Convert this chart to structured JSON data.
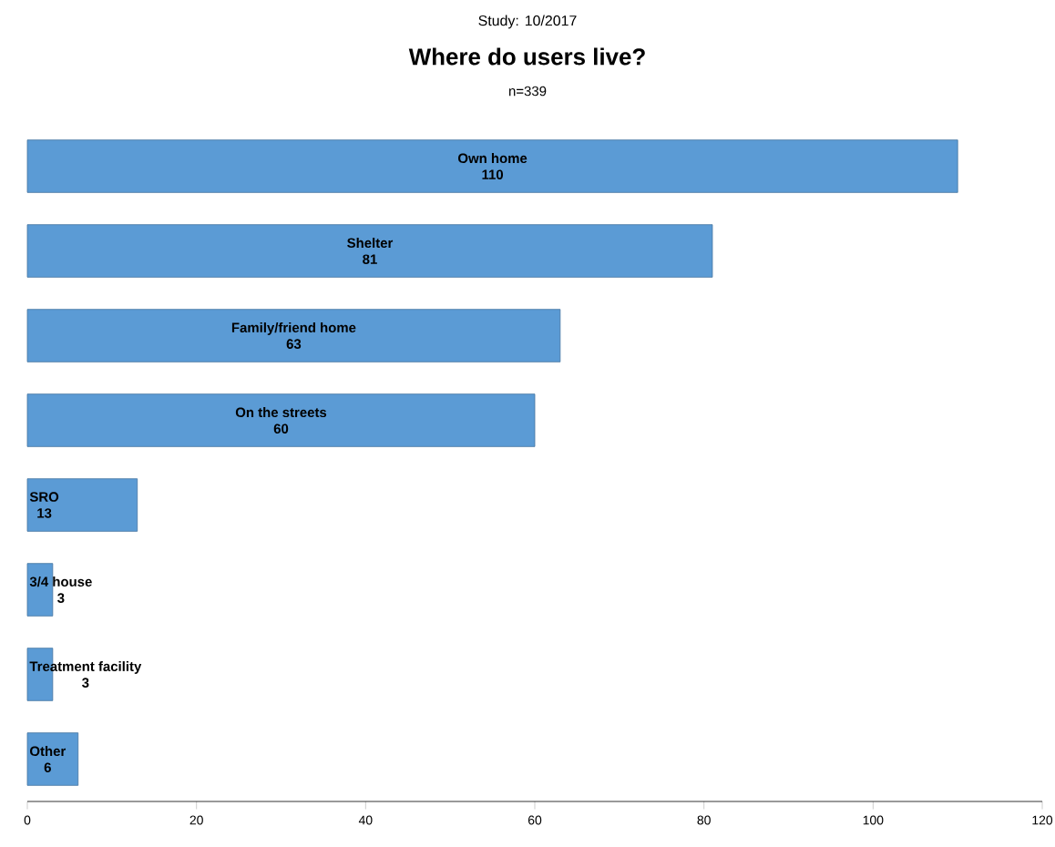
{
  "chart_data": {
    "type": "bar",
    "orientation": "horizontal",
    "title": "Where do users live?",
    "subtitle": "n=339",
    "annotations": [
      "Study: 10/2017"
    ],
    "categories": [
      "Own home",
      "Shelter",
      "Family/friend home",
      "On the streets",
      "SRO",
      "3/4 house",
      "Treatment facility",
      "Other"
    ],
    "values": [
      110,
      81,
      63,
      60,
      13,
      3,
      3,
      6
    ],
    "color": "#5b9bd5",
    "xlim": [
      0,
      120
    ],
    "xticks": [
      0,
      20,
      40,
      60,
      80,
      100,
      120
    ],
    "data_labels": true
  }
}
